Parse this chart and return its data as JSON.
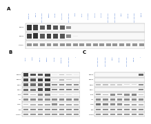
{
  "bg_color": "#ffffff",
  "panel_A": {
    "label": "A",
    "num_lanes": 18,
    "row_labels": [
      "pHER3",
      "pHER2",
      "GAPDH"
    ],
    "col_header_color": "#3366cc",
    "col_headers": [
      "SUM190",
      "BT474",
      "MDA-MB-453",
      "SKBR3",
      "AU565",
      "HCC1419",
      "MDA-MB-361",
      "T47D",
      "MCF7",
      "UACC893",
      "HCC70",
      "HCC38",
      "MDA-MB-231",
      "MDA-MB-468",
      "BT20",
      "Hs578T",
      "MDA-MB-436",
      "BT549"
    ],
    "sensitive_count": 7,
    "band_patterns": [
      [
        0.88,
        0.82,
        0.7,
        0.78,
        0.72,
        0.68,
        0.45,
        0.05,
        0.05,
        0.05,
        0.05,
        0.05,
        0.05,
        0.05,
        0.05,
        0.05,
        0.05,
        0.05
      ],
      [
        0.82,
        0.88,
        0.72,
        0.82,
        0.78,
        0.72,
        0.5,
        0.08,
        0.05,
        0.05,
        0.05,
        0.05,
        0.05,
        0.05,
        0.05,
        0.05,
        0.05,
        0.05
      ],
      [
        0.45,
        0.45,
        0.45,
        0.45,
        0.45,
        0.45,
        0.45,
        0.45,
        0.45,
        0.45,
        0.45,
        0.45,
        0.45,
        0.45,
        0.45,
        0.45,
        0.45,
        0.45
      ]
    ]
  },
  "panel_B": {
    "label": "B",
    "num_lanes": 8,
    "col_header_color": "#3366cc",
    "col_headers": [
      "MCF7",
      "T47D",
      "BT474",
      "SKBR3",
      "AU565",
      "SUM190",
      "MDA-MB-453",
      "?"
    ],
    "row_labels": [
      "pHER3",
      "pHER2",
      "HER3",
      "HER2",
      "pAKT",
      "AKT",
      "pERK",
      "ERK",
      "GAPDH"
    ],
    "band_patterns": [
      [
        0.82,
        0.75,
        0.72,
        0.78,
        0.08,
        0.28,
        0.18,
        0.08
      ],
      [
        0.78,
        0.72,
        0.82,
        0.88,
        0.12,
        0.32,
        0.22,
        0.08
      ],
      [
        0.68,
        0.62,
        0.68,
        0.72,
        0.48,
        0.48,
        0.48,
        0.48
      ],
      [
        0.62,
        0.58,
        0.78,
        0.82,
        0.52,
        0.52,
        0.52,
        0.48
      ],
      [
        0.38,
        0.32,
        0.48,
        0.52,
        0.18,
        0.22,
        0.18,
        0.12
      ],
      [
        0.48,
        0.48,
        0.48,
        0.48,
        0.48,
        0.48,
        0.48,
        0.48
      ],
      [
        0.28,
        0.32,
        0.38,
        0.38,
        0.48,
        0.42,
        0.38,
        0.32
      ],
      [
        0.48,
        0.48,
        0.48,
        0.48,
        0.48,
        0.48,
        0.48,
        0.48
      ],
      [
        0.45,
        0.45,
        0.45,
        0.45,
        0.45,
        0.45,
        0.45,
        0.45
      ]
    ]
  },
  "panel_C": {
    "label": "C",
    "num_lanes": 7,
    "col_header_color": "#3366cc",
    "col_headers": [
      "MDA-MB-231",
      "MDA-MB-468",
      "BT20",
      "Hs578T",
      "MDA-MB-436",
      "BT549",
      "?"
    ],
    "row_labels": [
      "pHER3",
      "pHER2",
      "HER3",
      "HER2",
      "pAKT",
      "AKT",
      "pERK",
      "ERK",
      "GAPDH"
    ],
    "band_patterns": [
      [
        0.05,
        0.05,
        0.05,
        0.05,
        0.05,
        0.05,
        0.65
      ],
      [
        0.05,
        0.05,
        0.05,
        0.05,
        0.05,
        0.05,
        0.08
      ],
      [
        0.28,
        0.28,
        0.22,
        0.22,
        0.18,
        0.18,
        0.48
      ],
      [
        0.08,
        0.08,
        0.08,
        0.08,
        0.08,
        0.08,
        0.48
      ],
      [
        0.38,
        0.32,
        0.48,
        0.42,
        0.48,
        0.52,
        0.28
      ],
      [
        0.48,
        0.48,
        0.48,
        0.48,
        0.48,
        0.48,
        0.48
      ],
      [
        0.58,
        0.52,
        0.48,
        0.48,
        0.42,
        0.38,
        0.32
      ],
      [
        0.48,
        0.48,
        0.48,
        0.48,
        0.48,
        0.48,
        0.48
      ],
      [
        0.45,
        0.45,
        0.45,
        0.45,
        0.45,
        0.45,
        0.45
      ]
    ]
  }
}
